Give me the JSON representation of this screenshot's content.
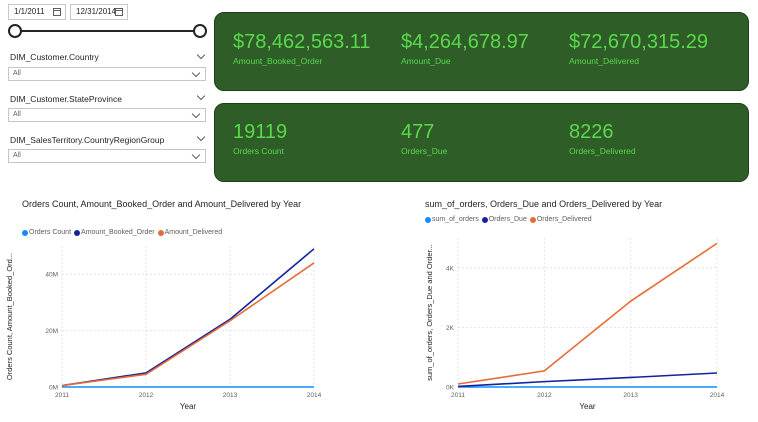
{
  "filters": {
    "date_start": "1/1/2011",
    "date_end": "12/31/2014",
    "slicers": [
      {
        "title": "DIM_Customer.Country",
        "value": "All"
      },
      {
        "title": "DIM_Customer.StateProvince",
        "value": "All"
      },
      {
        "title": "DIM_SalesTerritory.CountryRegionGroup",
        "value": "All"
      }
    ]
  },
  "cards": {
    "amounts": [
      {
        "value": "$78,462,563.11",
        "label": "Amount_Booked_Order"
      },
      {
        "value": "$4,264,678.97",
        "label": "Amount_Due"
      },
      {
        "value": "$72,670,315.29",
        "label": "Amount_Delivered"
      }
    ],
    "orders": [
      {
        "value": "19119",
        "label": "Orders Count"
      },
      {
        "value": "477",
        "label": "Orders_Due"
      },
      {
        "value": "8226",
        "label": "Orders_Delivered"
      }
    ]
  },
  "colors": {
    "card_bg": "#2e5d28",
    "kpi_text": "#5bd94c",
    "series_light_blue": "#118dff",
    "series_dark_blue": "#12239e",
    "series_orange": "#e66c37"
  },
  "chart_data": [
    {
      "type": "line",
      "title": "Orders Count, Amount_Booked_Order and Amount_Delivered by Year",
      "xlabel": "Year",
      "ylabel": "Orders Count, Amount_Booked_Ord...",
      "x": [
        "2011",
        "2012",
        "2013",
        "2014"
      ],
      "ylim": [
        0,
        50000000
      ],
      "yticks": [
        0,
        20000000,
        40000000
      ],
      "ytick_labels": [
        "0M",
        "20M",
        "40M"
      ],
      "grid": true,
      "legend_position": "top-left",
      "series": [
        {
          "name": "Orders Count",
          "color": "#118dff",
          "values": [
            0,
            0,
            0,
            0
          ]
        },
        {
          "name": "Amount_Booked_Order",
          "color": "#12239e",
          "values": [
            500000,
            5000000,
            24000000,
            49000000
          ]
        },
        {
          "name": "Amount_Delivered",
          "color": "#e66c37",
          "values": [
            500000,
            4500000,
            23500000,
            44000000
          ]
        }
      ]
    },
    {
      "type": "line",
      "title": "sum_of_orders, Orders_Due and Orders_Delivered by Year",
      "xlabel": "Year",
      "ylabel": "sum_of_orders, Orders_Due and Order...",
      "x": [
        "2011",
        "2012",
        "2013",
        "2014"
      ],
      "ylim": [
        0,
        5000
      ],
      "yticks": [
        0,
        2000,
        4000
      ],
      "ytick_labels": [
        "0K",
        "2K",
        "4K"
      ],
      "grid": true,
      "legend_position": "top-left",
      "series": [
        {
          "name": "sum_of_orders",
          "color": "#118dff",
          "values": [
            0,
            0,
            0,
            0
          ]
        },
        {
          "name": "Orders_Due",
          "color": "#12239e",
          "values": [
            20,
            180,
            320,
            470
          ]
        },
        {
          "name": "Orders_Delivered",
          "color": "#e66c37",
          "values": [
            100,
            540,
            2880,
            4820
          ]
        }
      ]
    }
  ]
}
